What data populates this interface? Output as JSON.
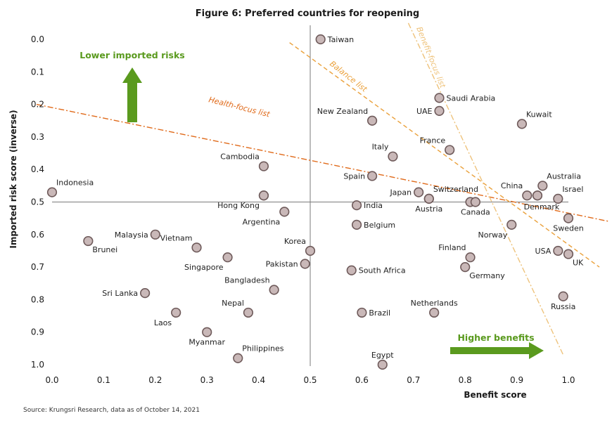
{
  "chart_data": {
    "type": "scatter",
    "title": "Figure 6: Preferred countries for reopening",
    "xlabel": "Benefit score",
    "ylabel": "Imported risk score (inverse)",
    "xlim": [
      0.0,
      1.0
    ],
    "ylim": [
      0.0,
      1.0
    ],
    "y_inverted": true,
    "x_ticks": [
      "0.0",
      "0.1",
      "0.2",
      "0.3",
      "0.4",
      "0.5",
      "0.6",
      "0.7",
      "0.8",
      "0.9",
      "1.0"
    ],
    "y_ticks": [
      "0.0",
      "0.1",
      "0.2",
      "0.3",
      "0.4",
      "0.5",
      "0.6",
      "0.7",
      "0.8",
      "0.9",
      "1.0"
    ],
    "reference_lines": {
      "x": 0.5,
      "y": 0.5
    },
    "colors": {
      "marker_fill": "#c9b8b8",
      "marker_stroke": "#6e5a5a",
      "green": "#5a9a1e",
      "health": "#e06a1a",
      "balance": "#eaa03a",
      "benefit": "#eec27a"
    },
    "points": [
      {
        "name": "Taiwan",
        "x": 0.52,
        "y": 0.0,
        "label_pos": "right"
      },
      {
        "name": "Saudi Arabia",
        "x": 0.75,
        "y": 0.18,
        "label_pos": "right"
      },
      {
        "name": "UAE",
        "x": 0.75,
        "y": 0.22,
        "label_pos": "left"
      },
      {
        "name": "Kuwait",
        "x": 0.91,
        "y": 0.26,
        "label_pos": "above-right"
      },
      {
        "name": "New Zealand",
        "x": 0.62,
        "y": 0.25,
        "label_pos": "above-left"
      },
      {
        "name": "France",
        "x": 0.77,
        "y": 0.34,
        "label_pos": "above-left"
      },
      {
        "name": "Italy",
        "x": 0.66,
        "y": 0.36,
        "label_pos": "above-left"
      },
      {
        "name": "Cambodia",
        "x": 0.41,
        "y": 0.39,
        "label_pos": "above-left"
      },
      {
        "name": "Spain",
        "x": 0.62,
        "y": 0.42,
        "label_pos": "left"
      },
      {
        "name": "Australia",
        "x": 0.95,
        "y": 0.45,
        "label_pos": "above-right"
      },
      {
        "name": "Indonesia",
        "x": 0.0,
        "y": 0.47,
        "label_pos": "above-right"
      },
      {
        "name": "Japan",
        "x": 0.71,
        "y": 0.47,
        "label_pos": "left"
      },
      {
        "name": "China",
        "x": 0.92,
        "y": 0.48,
        "label_pos": "above-left"
      },
      {
        "name": "",
        "x": 0.94,
        "y": 0.48,
        "label_pos": "none"
      },
      {
        "name": "Switzerland",
        "x": 0.73,
        "y": 0.49,
        "label_pos": "above-right"
      },
      {
        "name": "Israel",
        "x": 0.98,
        "y": 0.49,
        "label_pos": "above-right"
      },
      {
        "name": "",
        "x": 0.41,
        "y": 0.48,
        "label_pos": "none"
      },
      {
        "name": "Hong Kong",
        "x": 0.41,
        "y": 0.48,
        "label_pos": "below-left"
      },
      {
        "name": "Austria",
        "x": 0.73,
        "y": 0.49,
        "label_pos": "below"
      },
      {
        "name": "",
        "x": 0.81,
        "y": 0.5,
        "label_pos": "none"
      },
      {
        "name": "Canada",
        "x": 0.82,
        "y": 0.5,
        "label_pos": "below"
      },
      {
        "name": "India",
        "x": 0.59,
        "y": 0.51,
        "label_pos": "right"
      },
      {
        "name": "Argentina",
        "x": 0.45,
        "y": 0.53,
        "label_pos": "below-left"
      },
      {
        "name": "Denmark",
        "x": 0.94,
        "y": 0.48,
        "label_pos": "below-denmark"
      },
      {
        "name": "Sweden",
        "x": 1.0,
        "y": 0.55,
        "label_pos": "below"
      },
      {
        "name": "Belgium",
        "x": 0.59,
        "y": 0.57,
        "label_pos": "right"
      },
      {
        "name": "Norway",
        "x": 0.89,
        "y": 0.57,
        "label_pos": "below-left"
      },
      {
        "name": "Malaysia",
        "x": 0.2,
        "y": 0.6,
        "label_pos": "left"
      },
      {
        "name": "Brunei",
        "x": 0.07,
        "y": 0.62,
        "label_pos": "below-right"
      },
      {
        "name": "Vietnam",
        "x": 0.28,
        "y": 0.64,
        "label_pos": "above-left"
      },
      {
        "name": "Korea",
        "x": 0.5,
        "y": 0.65,
        "label_pos": "above-left"
      },
      {
        "name": "USA",
        "x": 0.98,
        "y": 0.65,
        "label_pos": "left"
      },
      {
        "name": "UK",
        "x": 1.0,
        "y": 0.66,
        "label_pos": "below-right"
      },
      {
        "name": "Singapore",
        "x": 0.34,
        "y": 0.67,
        "label_pos": "below-left"
      },
      {
        "name": "Finland",
        "x": 0.81,
        "y": 0.67,
        "label_pos": "above-left"
      },
      {
        "name": "Pakistan",
        "x": 0.49,
        "y": 0.69,
        "label_pos": "left"
      },
      {
        "name": "Germany",
        "x": 0.8,
        "y": 0.7,
        "label_pos": "below-right"
      },
      {
        "name": "South Africa",
        "x": 0.58,
        "y": 0.71,
        "label_pos": "right"
      },
      {
        "name": "Bangladesh",
        "x": 0.43,
        "y": 0.77,
        "label_pos": "above-left"
      },
      {
        "name": "Sri Lanka",
        "x": 0.18,
        "y": 0.78,
        "label_pos": "left"
      },
      {
        "name": "Russia",
        "x": 0.99,
        "y": 0.79,
        "label_pos": "below"
      },
      {
        "name": "Nepal",
        "x": 0.38,
        "y": 0.84,
        "label_pos": "above-left"
      },
      {
        "name": "Laos",
        "x": 0.24,
        "y": 0.84,
        "label_pos": "below-left"
      },
      {
        "name": "Brazil",
        "x": 0.6,
        "y": 0.84,
        "label_pos": "right"
      },
      {
        "name": "Netherlands",
        "x": 0.74,
        "y": 0.84,
        "label_pos": "above"
      },
      {
        "name": "Myanmar",
        "x": 0.3,
        "y": 0.9,
        "label_pos": "below"
      },
      {
        "name": "Philippines",
        "x": 0.36,
        "y": 0.98,
        "label_pos": "above-right"
      },
      {
        "name": "Egypt",
        "x": 0.64,
        "y": 1.0,
        "label_pos": "above"
      }
    ],
    "trend_lines": [
      {
        "name": "Health-focus list",
        "x1": -0.03,
        "y1": 0.2,
        "x2": 1.08,
        "y2": 0.56,
        "color": "#e06a1a",
        "dash": "8 3 2 3"
      },
      {
        "name": "Balance list",
        "x1": 0.46,
        "y1": 0.01,
        "x2": 1.06,
        "y2": 0.7,
        "color": "#eaa03a",
        "dash": "6 4"
      },
      {
        "name": "Benefit-focus list",
        "x1": 0.69,
        "y1": -0.05,
        "x2": 0.99,
        "y2": 0.97,
        "color": "#eec27a",
        "dash": "8 3 2 3"
      }
    ],
    "annotations": [
      {
        "text": "Lower imported risks",
        "arrow": "up"
      },
      {
        "text": "Higher benefits",
        "arrow": "right"
      }
    ],
    "source": "Source: Krungsri Research, data as of October 14, 2021"
  }
}
